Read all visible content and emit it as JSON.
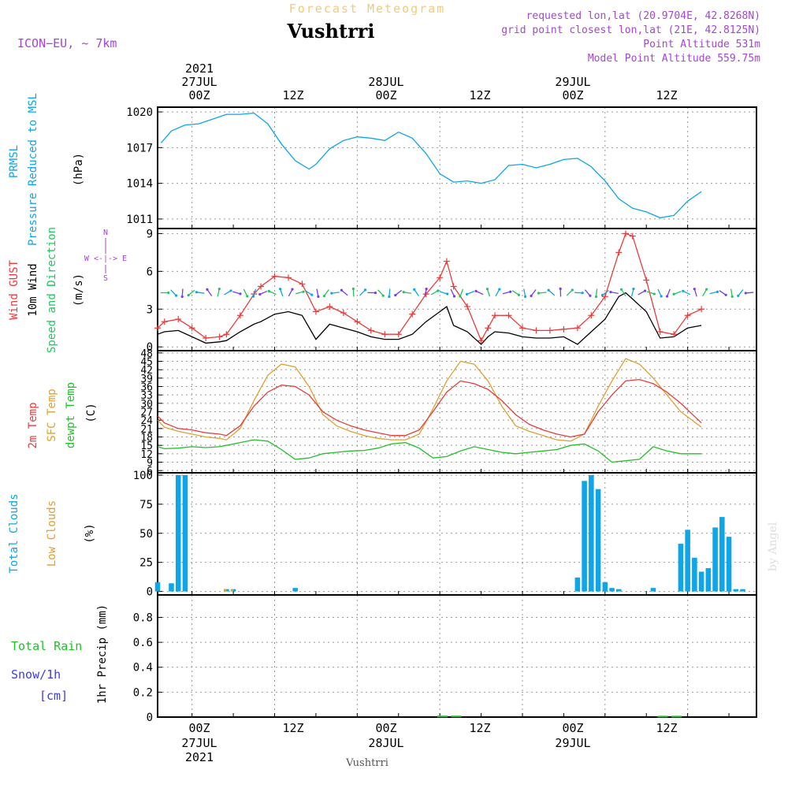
{
  "header": {
    "top_title": "Forecast Meteogram",
    "location": "Vushtrri",
    "model": "ICON−EU, ~ 7km",
    "requested": "requested lon,lat (20.9704E, 42.8268N)",
    "grid_point": "grid point closest lon,lat (21E, 42.8125N)",
    "altitude": "Point Altitude 531m",
    "model_altitude": "Model Point Altitude 559.75m"
  },
  "time_axis": {
    "year": "2021",
    "top_dates": [
      "27JUL",
      "28JUL",
      "29JUL"
    ],
    "ticks": [
      "00Z",
      "12Z",
      "00Z",
      "12Z",
      "00Z",
      "12Z"
    ],
    "bottom_dates": [
      "27JUL",
      "28JUL",
      "29JUL"
    ],
    "bottom_year": "2021",
    "footer": "Vushtrri"
  },
  "credit": "by Angel",
  "colors": {
    "pressure": "#0ea5e9",
    "gust": "#e83c3c",
    "wind": "#000000",
    "wind_dir": "#22c55e",
    "temp": "#e83c3c",
    "sfc": "#e0a030",
    "dewpt": "#22c02a",
    "total_clouds": "#0ea5e9",
    "low_clouds": "#e0a030",
    "rain": "#22c02a",
    "snow": "#3b3bf0",
    "compass": "#a445d6",
    "grid": "#999999"
  },
  "panel_labels": {
    "pressure": [
      "PRMSL",
      "Pressure Reduced to MSL",
      "(hPa)"
    ],
    "wind": [
      "Wind GUST",
      "10m Wind",
      "Speed and Direction",
      "(m/s)"
    ],
    "temp": [
      "2m Temp",
      "SFC Temp",
      "dewpt Temp",
      "(C)"
    ],
    "clouds": [
      "Total Clouds",
      "Low Clouds",
      "(%)"
    ],
    "precip": [
      "Total Rain",
      "Snow/1h",
      "[cm]",
      "1hr Precip (mm)"
    ],
    "compass": [
      "N",
      "S",
      "W <-|-> E"
    ]
  },
  "chart_data": [
    {
      "type": "line",
      "ylabel": "(hPa)",
      "yticks": [
        1011,
        1014,
        1017,
        1020
      ],
      "ylim": [
        1010.2,
        1020.4
      ],
      "x": [
        -4.5,
        -3,
        -1,
        1,
        3,
        5,
        7,
        9,
        11,
        13,
        15,
        17,
        18,
        20,
        22,
        24,
        26,
        28,
        30,
        32,
        34,
        36,
        38,
        40,
        42,
        44,
        46,
        48,
        50,
        52,
        54,
        56,
        58,
        60,
        62,
        64,
        66,
        68,
        70,
        72,
        74
      ],
      "series": [
        {
          "name": "PRMSL",
          "values": [
            1017.4,
            1018.4,
            1018.9,
            1019.0,
            1019.4,
            1019.8,
            1019.8,
            1019.9,
            1019.0,
            1017.3,
            1015.9,
            1015.2,
            1015.6,
            1016.9,
            1017.6,
            1017.9,
            1017.8,
            1017.6,
            1018.3,
            1017.8,
            1016.5,
            1014.8,
            1014.1,
            1014.2,
            1014.0,
            1014.3,
            1015.5,
            1015.6,
            1015.3,
            1015.6,
            1016.0,
            1016.1,
            1015.4,
            1014.2,
            1012.7,
            1011.9,
            1011.6,
            1011.1,
            1011.3,
            1012.5,
            1013.3
          ]
        }
      ]
    },
    {
      "type": "line",
      "ylabel": "(m/s)",
      "yticks": [
        0,
        3,
        6,
        9
      ],
      "ylim": [
        -0.3,
        9.4
      ],
      "x": [
        -5,
        -4,
        -2,
        0,
        2,
        4,
        5,
        7,
        9,
        10,
        12,
        14,
        16,
        18,
        20,
        22,
        24,
        26,
        28,
        30,
        32,
        34,
        36,
        37,
        38,
        40,
        42,
        43,
        44,
        46,
        48,
        50,
        52,
        54,
        56,
        58,
        60,
        62,
        63,
        64,
        66,
        68,
        70,
        72,
        74
      ],
      "series": [
        {
          "name": "Wind GUST",
          "values": [
            1.5,
            2.0,
            2.2,
            1.5,
            0.7,
            0.8,
            1.0,
            2.5,
            4.2,
            4.8,
            5.6,
            5.5,
            5.0,
            2.8,
            3.2,
            2.7,
            2.0,
            1.3,
            1.0,
            1.0,
            2.6,
            4.2,
            5.5,
            6.8,
            4.8,
            3.2,
            0.5,
            1.5,
            2.5,
            2.5,
            1.5,
            1.3,
            1.3,
            1.4,
            1.5,
            2.5,
            4.0,
            7.5,
            9.0,
            8.8,
            5.3,
            1.2,
            1.0,
            2.5,
            3.0
          ]
        },
        {
          "name": "10m Wind",
          "values": [
            1.0,
            1.2,
            1.3,
            0.8,
            0.3,
            0.4,
            0.5,
            1.2,
            1.8,
            2.0,
            2.6,
            2.8,
            2.5,
            0.6,
            1.8,
            1.5,
            1.2,
            0.8,
            0.6,
            0.6,
            1.0,
            2.0,
            2.8,
            3.2,
            1.7,
            1.2,
            0.2,
            0.8,
            1.2,
            1.1,
            0.8,
            0.7,
            0.7,
            0.8,
            0.2,
            1.2,
            2.2,
            4.0,
            4.3,
            3.8,
            2.8,
            0.7,
            0.8,
            1.5,
            1.7
          ]
        }
      ],
      "wind_arrows": {
        "y": 4.3,
        "count": 66,
        "colors": [
          "#22c55e",
          "#0ea5e9",
          "#7c3aed",
          "#e83c3c"
        ]
      }
    },
    {
      "type": "line",
      "ylabel": "(C)",
      "yticks": [
        6,
        9,
        12,
        15,
        18,
        21,
        24,
        27,
        30,
        33,
        36,
        39,
        42,
        45,
        48
      ],
      "ylim": [
        5.2,
        48.8
      ],
      "x": [
        -5,
        -4,
        -2,
        0,
        2,
        4,
        5,
        7,
        9,
        11,
        13,
        15,
        17,
        19,
        21,
        23,
        25,
        27,
        29,
        31,
        33,
        35,
        37,
        39,
        41,
        43,
        45,
        47,
        49,
        51,
        53,
        55,
        57,
        59,
        61,
        63,
        65,
        67,
        69,
        71,
        74
      ],
      "series": [
        {
          "name": "2m Temp",
          "values": [
            25.5,
            23.0,
            21.0,
            20.5,
            19.5,
            19.0,
            18.5,
            22.0,
            29.0,
            34.0,
            36.5,
            36.0,
            33.0,
            27.0,
            24.0,
            22.0,
            20.5,
            19.5,
            18.5,
            18.5,
            20.5,
            27.0,
            34.0,
            38.0,
            37.0,
            35.0,
            31.0,
            26.0,
            22.5,
            20.5,
            19.0,
            18.0,
            19.0,
            27.0,
            33.0,
            38.0,
            38.5,
            37.0,
            34.0,
            30.0,
            23.0
          ]
        },
        {
          "name": "SFC Temp",
          "values": [
            24.0,
            21.5,
            20.0,
            19.0,
            18.0,
            17.5,
            17.0,
            21.0,
            31.0,
            40.0,
            44.0,
            43.0,
            36.0,
            26.0,
            22.0,
            20.0,
            18.5,
            17.5,
            17.0,
            17.0,
            19.0,
            28.0,
            38.0,
            45.0,
            44.0,
            38.0,
            29.0,
            22.0,
            20.0,
            18.5,
            17.0,
            16.5,
            19.0,
            29.0,
            38.0,
            46.0,
            44.0,
            39.0,
            33.0,
            27.0,
            21.5
          ]
        },
        {
          "name": "dewpt Temp",
          "values": [
            14.5,
            13.8,
            14.0,
            14.5,
            14.2,
            14.5,
            15.0,
            16.0,
            17.0,
            16.5,
            13.5,
            10.0,
            10.5,
            12.0,
            12.5,
            13.0,
            13.2,
            14.0,
            15.5,
            16.0,
            14.0,
            10.5,
            11.0,
            13.0,
            14.5,
            13.5,
            12.5,
            12.0,
            12.5,
            13.0,
            13.5,
            15.0,
            15.5,
            13.0,
            9.0,
            9.5,
            10.0,
            14.5,
            13.0,
            12.0,
            12.0
          ]
        }
      ]
    },
    {
      "type": "bar",
      "ylabel": "(%)",
      "yticks": [
        0,
        25,
        50,
        75,
        100
      ],
      "ylim": [
        -3,
        102
      ],
      "x": [
        -5,
        -3,
        -2,
        -1,
        5,
        6,
        15,
        56,
        57,
        58,
        59,
        60,
        61,
        62,
        67,
        71,
        72,
        73,
        74,
        75,
        76,
        77,
        78,
        79,
        80
      ],
      "series": [
        {
          "name": "Total Clouds",
          "values": [
            8,
            7,
            100,
            100,
            2,
            2,
            3,
            12,
            95,
            100,
            88,
            8,
            3,
            2,
            3,
            41,
            53,
            29,
            17,
            20,
            55,
            64,
            47,
            2,
            2
          ]
        },
        {
          "name": "Low Clouds",
          "values": [
            0,
            0,
            0,
            0,
            2,
            2,
            0,
            0,
            0,
            0,
            0,
            0,
            0,
            0,
            0,
            0,
            0,
            0,
            0,
            0,
            0,
            0,
            0,
            0,
            0
          ]
        }
      ]
    },
    {
      "type": "bar",
      "ylabel": "1hr Precip (mm)",
      "yticks": [
        0,
        0.2,
        0.4,
        0.6,
        0.8
      ],
      "ylim": [
        0,
        0.98
      ],
      "x": [
        36,
        38,
        68,
        70
      ],
      "series": [
        {
          "name": "Total Rain",
          "values": [
            0.005,
            0.005,
            0.004,
            0.004
          ]
        },
        {
          "name": "Snow/1h",
          "values": [
            0,
            0,
            0,
            0
          ]
        }
      ]
    }
  ]
}
